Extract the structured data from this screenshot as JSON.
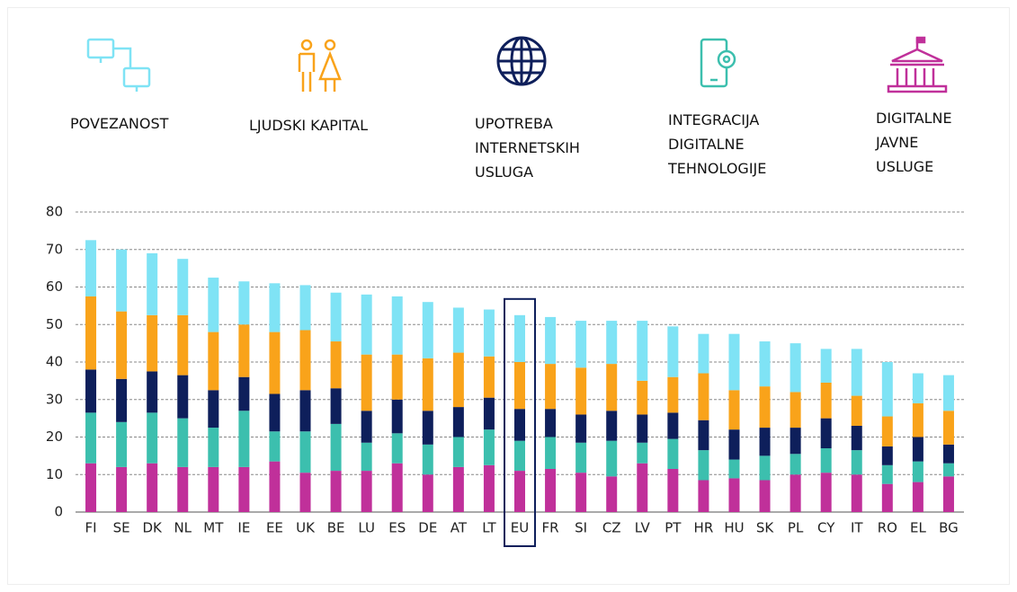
{
  "chart_data": {
    "type": "stacked_bar",
    "categories": [
      "FI",
      "SE",
      "DK",
      "NL",
      "MT",
      "IE",
      "EE",
      "UK",
      "BE",
      "LU",
      "ES",
      "DE",
      "AT",
      "LT",
      "EU",
      "FR",
      "SI",
      "CZ",
      "LV",
      "PT",
      "HR",
      "HU",
      "SK",
      "PL",
      "CY",
      "IT",
      "RO",
      "EL",
      "BG"
    ],
    "series": [
      {
        "name": "DIGITALNE JAVNE USLUGE",
        "color": "#c0309a",
        "values": [
          13,
          12,
          13,
          12,
          12,
          12,
          13.5,
          10.5,
          11,
          11,
          13,
          10,
          12,
          12.5,
          11,
          11.5,
          10.5,
          9.5,
          13,
          11.5,
          8.5,
          9,
          8.5,
          10,
          10.5,
          10,
          7.5,
          8,
          9.5
        ]
      },
      {
        "name": "INTEGRACIJA DIGITALNE TEHNOLOGIJE",
        "color": "#3cbfae",
        "values": [
          13.5,
          12,
          13.5,
          13,
          10.5,
          15,
          8,
          11,
          12.5,
          7.5,
          8,
          8,
          8,
          9.5,
          8,
          8.5,
          8,
          9.5,
          5.5,
          8,
          8,
          5,
          6.5,
          5.5,
          6.5,
          6.5,
          5,
          5.5,
          3.5
        ]
      },
      {
        "name": "UPOTREBA INTERNETSKIH USLUGA",
        "color": "#0e1f5b",
        "values": [
          11.5,
          11.5,
          11,
          11.5,
          10,
          9,
          10,
          11,
          9.5,
          8.5,
          9,
          9,
          8,
          8.5,
          8.5,
          7.5,
          7.5,
          8,
          7.5,
          7,
          8,
          8,
          7.5,
          7,
          8,
          6.5,
          5,
          6.5,
          5
        ]
      },
      {
        "name": "LJUDSKI KAPITAL",
        "color": "#f9a31a",
        "values": [
          19.5,
          18,
          15,
          16,
          15.5,
          14,
          16.5,
          16,
          12.5,
          15,
          12,
          14,
          14.5,
          11,
          12.5,
          12,
          12.5,
          12.5,
          9,
          9.5,
          12.5,
          10.5,
          11,
          9.5,
          9.5,
          8,
          8,
          9,
          9
        ]
      },
      {
        "name": "POVEZANOST",
        "color": "#7fe3f5",
        "values": [
          15,
          16.5,
          16.5,
          15,
          14.5,
          11.5,
          13,
          12,
          13,
          16,
          15.5,
          15,
          12,
          12.5,
          12.5,
          12.5,
          12.5,
          11.5,
          16,
          13.5,
          10.5,
          15,
          12,
          13,
          9,
          12.5,
          14.5,
          8,
          9.5
        ]
      }
    ],
    "ylim": [
      0,
      80
    ],
    "yticks": [
      0,
      10,
      20,
      30,
      40,
      50,
      60,
      70,
      80
    ],
    "grid": true,
    "highlight": "EU"
  }
}
